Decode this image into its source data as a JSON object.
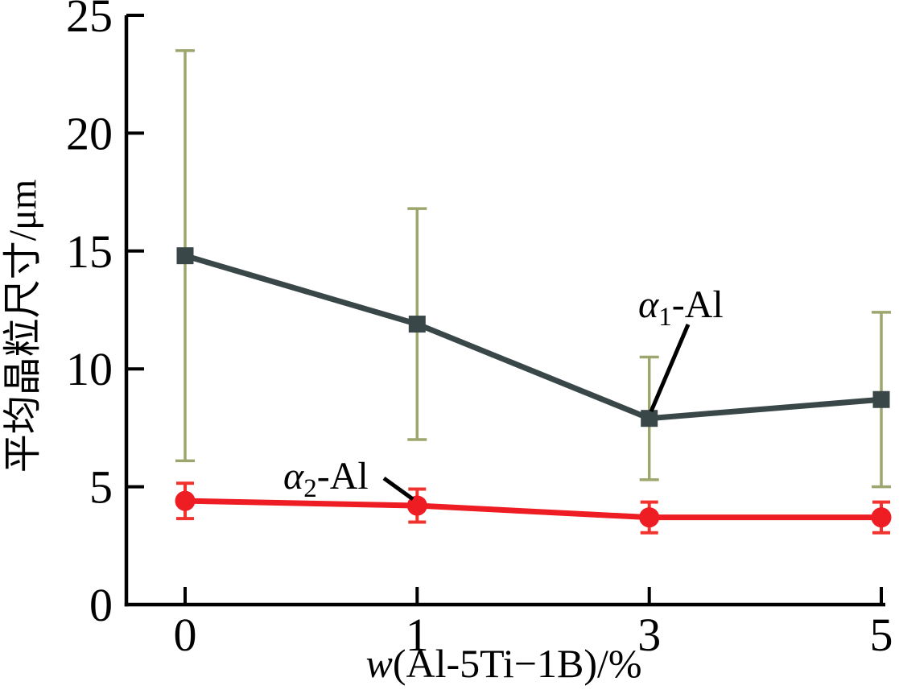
{
  "figure": {
    "background": "#ffffff",
    "axis_color": "#000000"
  },
  "chart_data": {
    "type": "line",
    "title": "",
    "xlabel_italic_prefix": "w",
    "xlabel_rest": "(Al-5Ti−1B)/%",
    "xlabel_full": "w(Al-5Ti−1B)/%",
    "ylabel": "平均晶粒尺寸/μm",
    "x_categories": [
      "0",
      "1",
      "3",
      "5"
    ],
    "x_values": [
      0,
      1,
      3,
      5
    ],
    "yticks": [
      "0",
      "5",
      "10",
      "15",
      "20",
      "25"
    ],
    "ylim": [
      0,
      25
    ],
    "grid": false,
    "legend_position": "inline-annotations",
    "series": [
      {
        "id": "alpha1",
        "name": "α₁-Al",
        "marker": "square",
        "color": "#3a4748",
        "error_color": "#9da66f",
        "values": [
          14.8,
          11.9,
          7.9,
          8.7
        ],
        "errors_plus": [
          8.7,
          4.9,
          2.6,
          3.7
        ],
        "errors_minus": [
          8.7,
          4.9,
          2.6,
          3.7
        ]
      },
      {
        "id": "alpha2",
        "name": "α₂-Al",
        "marker": "circle",
        "color": "#ee1c23",
        "error_color": "#f2322e",
        "values": [
          4.4,
          4.2,
          3.7,
          3.7
        ],
        "errors_plus": [
          0.75,
          0.7,
          0.65,
          0.65
        ],
        "errors_minus": [
          0.75,
          0.7,
          0.65,
          0.65
        ]
      }
    ],
    "annotations": [
      {
        "series": "alpha1",
        "alpha": "α",
        "sub": "1",
        "rest": "-Al",
        "full_text": "α₁-Al",
        "points_to": {
          "x_category": "3",
          "series_value": 7.9
        }
      },
      {
        "series": "alpha2",
        "alpha": "α",
        "sub": "2",
        "rest": "-Al",
        "full_text": "α₂-Al",
        "points_to": {
          "x_category": "1",
          "series_value": 4.2
        }
      }
    ]
  }
}
